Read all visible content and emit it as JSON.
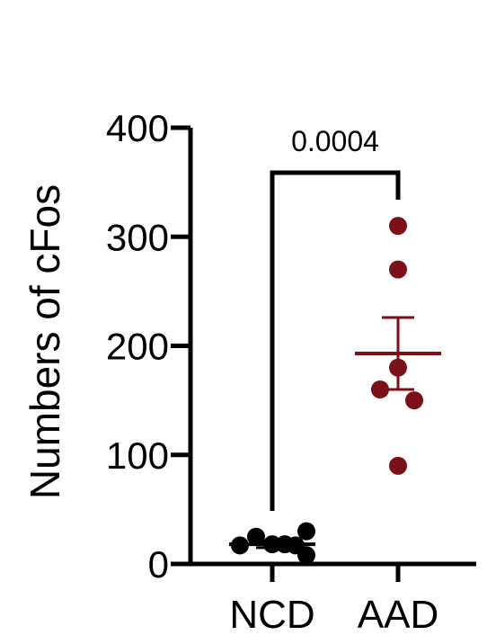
{
  "chart_data": {
    "type": "scatter",
    "ylabel": "Numbers of cFos",
    "ylim": [
      0,
      400
    ],
    "yticks": [
      0,
      100,
      200,
      300,
      400
    ],
    "categories": [
      "NCD",
      "AAD"
    ],
    "series": [
      {
        "name": "NCD",
        "color": "#000000",
        "values": [
          17,
          25,
          18,
          18,
          17,
          30,
          8
        ],
        "mean": 18,
        "sem": 3
      },
      {
        "name": "AAD",
        "color": "#7b1019",
        "values": [
          310,
          270,
          180,
          160,
          150,
          90
        ],
        "mean": 193,
        "sem": 33
      }
    ],
    "annotations": [
      {
        "text": "0.0004",
        "between": [
          "NCD",
          "AAD"
        ]
      }
    ]
  }
}
